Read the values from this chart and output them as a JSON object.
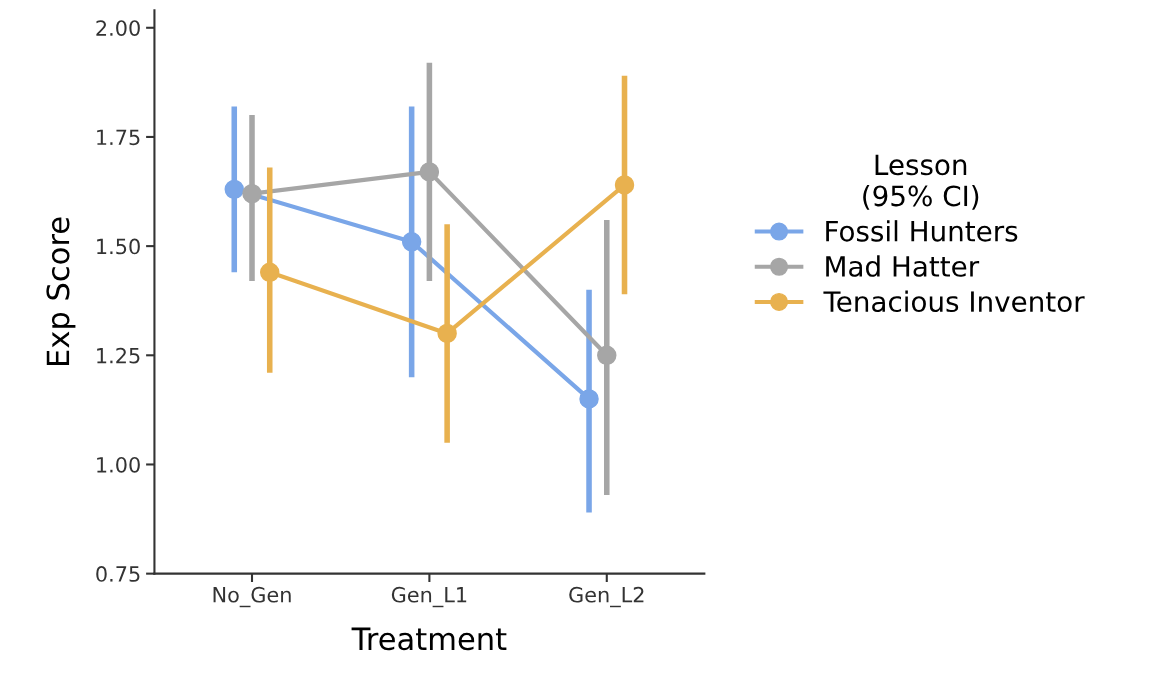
{
  "chart_data": {
    "type": "line",
    "xlabel": "Treatment",
    "ylabel": "Exp Score",
    "legend_title": "Lesson\n(95% CI)",
    "categories": [
      "No_Gen",
      "Gen_L1",
      "Gen_L2"
    ],
    "series": [
      {
        "name": "Fossil Hunters",
        "color": "#7aa6e8",
        "values": [
          1.63,
          1.51,
          1.15
        ],
        "errors": [
          [
            1.44,
            1.82
          ],
          [
            1.2,
            1.82
          ],
          [
            0.89,
            1.4
          ]
        ]
      },
      {
        "name": "Mad Hatter",
        "color": "#a6a6a6",
        "values": [
          1.62,
          1.67,
          1.25
        ],
        "errors": [
          [
            1.42,
            1.8
          ],
          [
            1.42,
            1.92
          ],
          [
            0.93,
            1.56
          ]
        ]
      },
      {
        "name": "Tenacious Inventor",
        "color": "#e8b14f",
        "values": [
          1.44,
          1.3,
          1.64
        ],
        "errors": [
          [
            1.21,
            1.68
          ],
          [
            1.05,
            1.55
          ],
          [
            1.39,
            1.89
          ]
        ]
      }
    ],
    "ylim": [
      0.75,
      2.04
    ],
    "yticks": [
      {
        "value": 0.75,
        "label": "0.75"
      },
      {
        "value": 1.0,
        "label": "1.00"
      },
      {
        "value": 1.25,
        "label": "1.25"
      },
      {
        "value": 1.5,
        "label": "1.50"
      },
      {
        "value": 1.75,
        "label": "1.75"
      },
      {
        "value": 2.0,
        "label": "2.00"
      }
    ],
    "grid": false,
    "legend": "right",
    "marker": "circle",
    "line_style": "solid"
  }
}
